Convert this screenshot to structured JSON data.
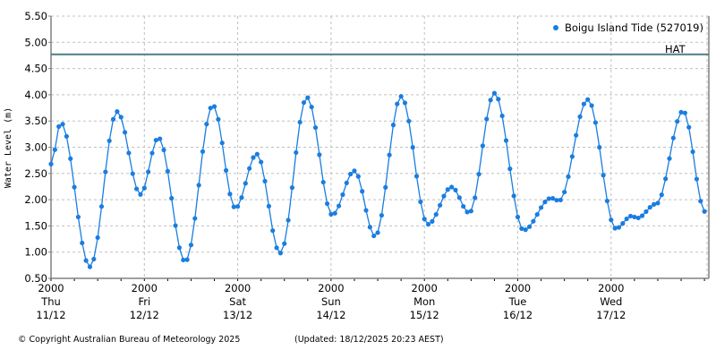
{
  "chart_data": {
    "type": "line",
    "title": "",
    "xlabel": "",
    "ylabel": "Water Level (m)",
    "ylim": [
      0.5,
      5.5
    ],
    "yticks": [
      "0.50",
      "1.00",
      "1.50",
      "2.00",
      "2.50",
      "3.00",
      "3.50",
      "4.00",
      "4.50",
      "5.00",
      "5.50"
    ],
    "grid": true,
    "legend_position": "top-right",
    "x_unit": "hours since Thu 11/12 2000",
    "x_range_hours": [
      0,
      169
    ],
    "xtick_labels": [
      {
        "time": "2000",
        "day": "Thu",
        "date": "11/12",
        "hour": 0
      },
      {
        "time": "2000",
        "day": "Fri",
        "date": "12/12",
        "hour": 24
      },
      {
        "time": "2000",
        "day": "Sat",
        "date": "13/12",
        "hour": 48
      },
      {
        "time": "2000",
        "day": "Sun",
        "date": "14/12",
        "hour": 72
      },
      {
        "time": "2000",
        "day": "Mon",
        "date": "15/12",
        "hour": 96
      },
      {
        "time": "2000",
        "day": "Tue",
        "date": "16/12",
        "hour": 120
      },
      {
        "time": "2000",
        "day": "Wed",
        "date": "17/12",
        "hour": 144
      }
    ],
    "reference_lines": [
      {
        "name": "HAT",
        "value": 4.77,
        "color": "#4a7f86"
      }
    ],
    "series": [
      {
        "name": "Boigu Island Tide (527019)",
        "color": "#1a7de0",
        "key_points": [
          {
            "x": 0,
            "y": 2.68
          },
          {
            "x": 2.5,
            "y": 3.47
          },
          {
            "x": 10,
            "y": 0.72
          },
          {
            "x": 17,
            "y": 3.68
          },
          {
            "x": 23,
            "y": 2.1
          },
          {
            "x": 27.6,
            "y": 3.18
          },
          {
            "x": 34.5,
            "y": 0.82
          },
          {
            "x": 41.6,
            "y": 3.8
          },
          {
            "x": 47.4,
            "y": 1.84
          },
          {
            "x": 52.9,
            "y": 2.87
          },
          {
            "x": 58.9,
            "y": 0.98
          },
          {
            "x": 65.8,
            "y": 3.95
          },
          {
            "x": 72.3,
            "y": 1.71
          },
          {
            "x": 78,
            "y": 2.55
          },
          {
            "x": 83.3,
            "y": 1.3
          },
          {
            "x": 90,
            "y": 3.97
          },
          {
            "x": 96.9,
            "y": 1.53
          },
          {
            "x": 103,
            "y": 2.24
          },
          {
            "x": 107.5,
            "y": 1.75
          },
          {
            "x": 114,
            "y": 4.03
          },
          {
            "x": 121.5,
            "y": 1.42
          },
          {
            "x": 128.6,
            "y": 2.03
          },
          {
            "x": 130.6,
            "y": 1.98
          },
          {
            "x": 138,
            "y": 3.91
          },
          {
            "x": 145.2,
            "y": 1.45
          },
          {
            "x": 149.3,
            "y": 1.69
          },
          {
            "x": 150.7,
            "y": 1.65
          },
          {
            "x": 155.6,
            "y": 1.92
          },
          {
            "x": 162.5,
            "y": 3.69
          },
          {
            "x": 168.2,
            "y": 1.77
          }
        ]
      }
    ]
  },
  "legend": {
    "label": "Boigu Island Tide (527019)"
  },
  "hat_label": "HAT",
  "axis": {
    "ylabel": "Water Level (m)"
  },
  "footer": {
    "copyright": "© Copyright Australian Bureau of Meteorology 2025",
    "updated": "(Updated: 18/12/2025 20:23 AEST)"
  },
  "colors": {
    "series": "#1a7de0",
    "hat": "#4a7f86",
    "grid": "#c0c0c0",
    "axis": "#808080"
  }
}
